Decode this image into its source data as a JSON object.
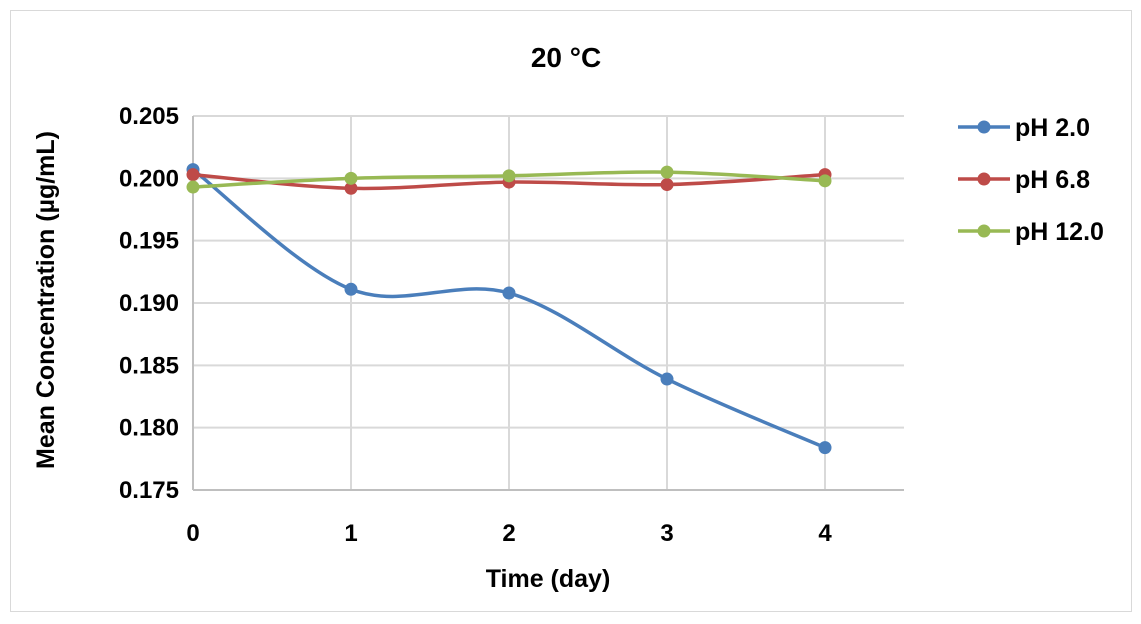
{
  "chart_data": {
    "type": "line",
    "title": "20 °C",
    "xlabel": "Time (day)",
    "ylabel": "Mean Concentration (µg/mL)",
    "x": [
      0,
      1,
      2,
      3,
      4
    ],
    "x_tick_labels": [
      "0",
      "1",
      "2",
      "3",
      "4"
    ],
    "y_tick_labels": [
      "0.175",
      "0.180",
      "0.185",
      "0.190",
      "0.195",
      "0.200",
      "0.205"
    ],
    "xlim": [
      0,
      4.5
    ],
    "ylim": [
      0.175,
      0.205
    ],
    "grid": true,
    "legend_position": "right",
    "smooth": true,
    "series": [
      {
        "name": "pH 2.0",
        "color": "#4a7ebb",
        "values": [
          0.2007,
          0.1911,
          0.1908,
          0.1839,
          0.1784
        ]
      },
      {
        "name": "pH 6.8",
        "color": "#be4b48",
        "values": [
          0.2003,
          0.1992,
          0.1997,
          0.1995,
          0.2003
        ]
      },
      {
        "name": "pH 12.0",
        "color": "#98b954",
        "values": [
          0.1993,
          0.2,
          0.2002,
          0.2005,
          0.1998
        ]
      }
    ]
  }
}
